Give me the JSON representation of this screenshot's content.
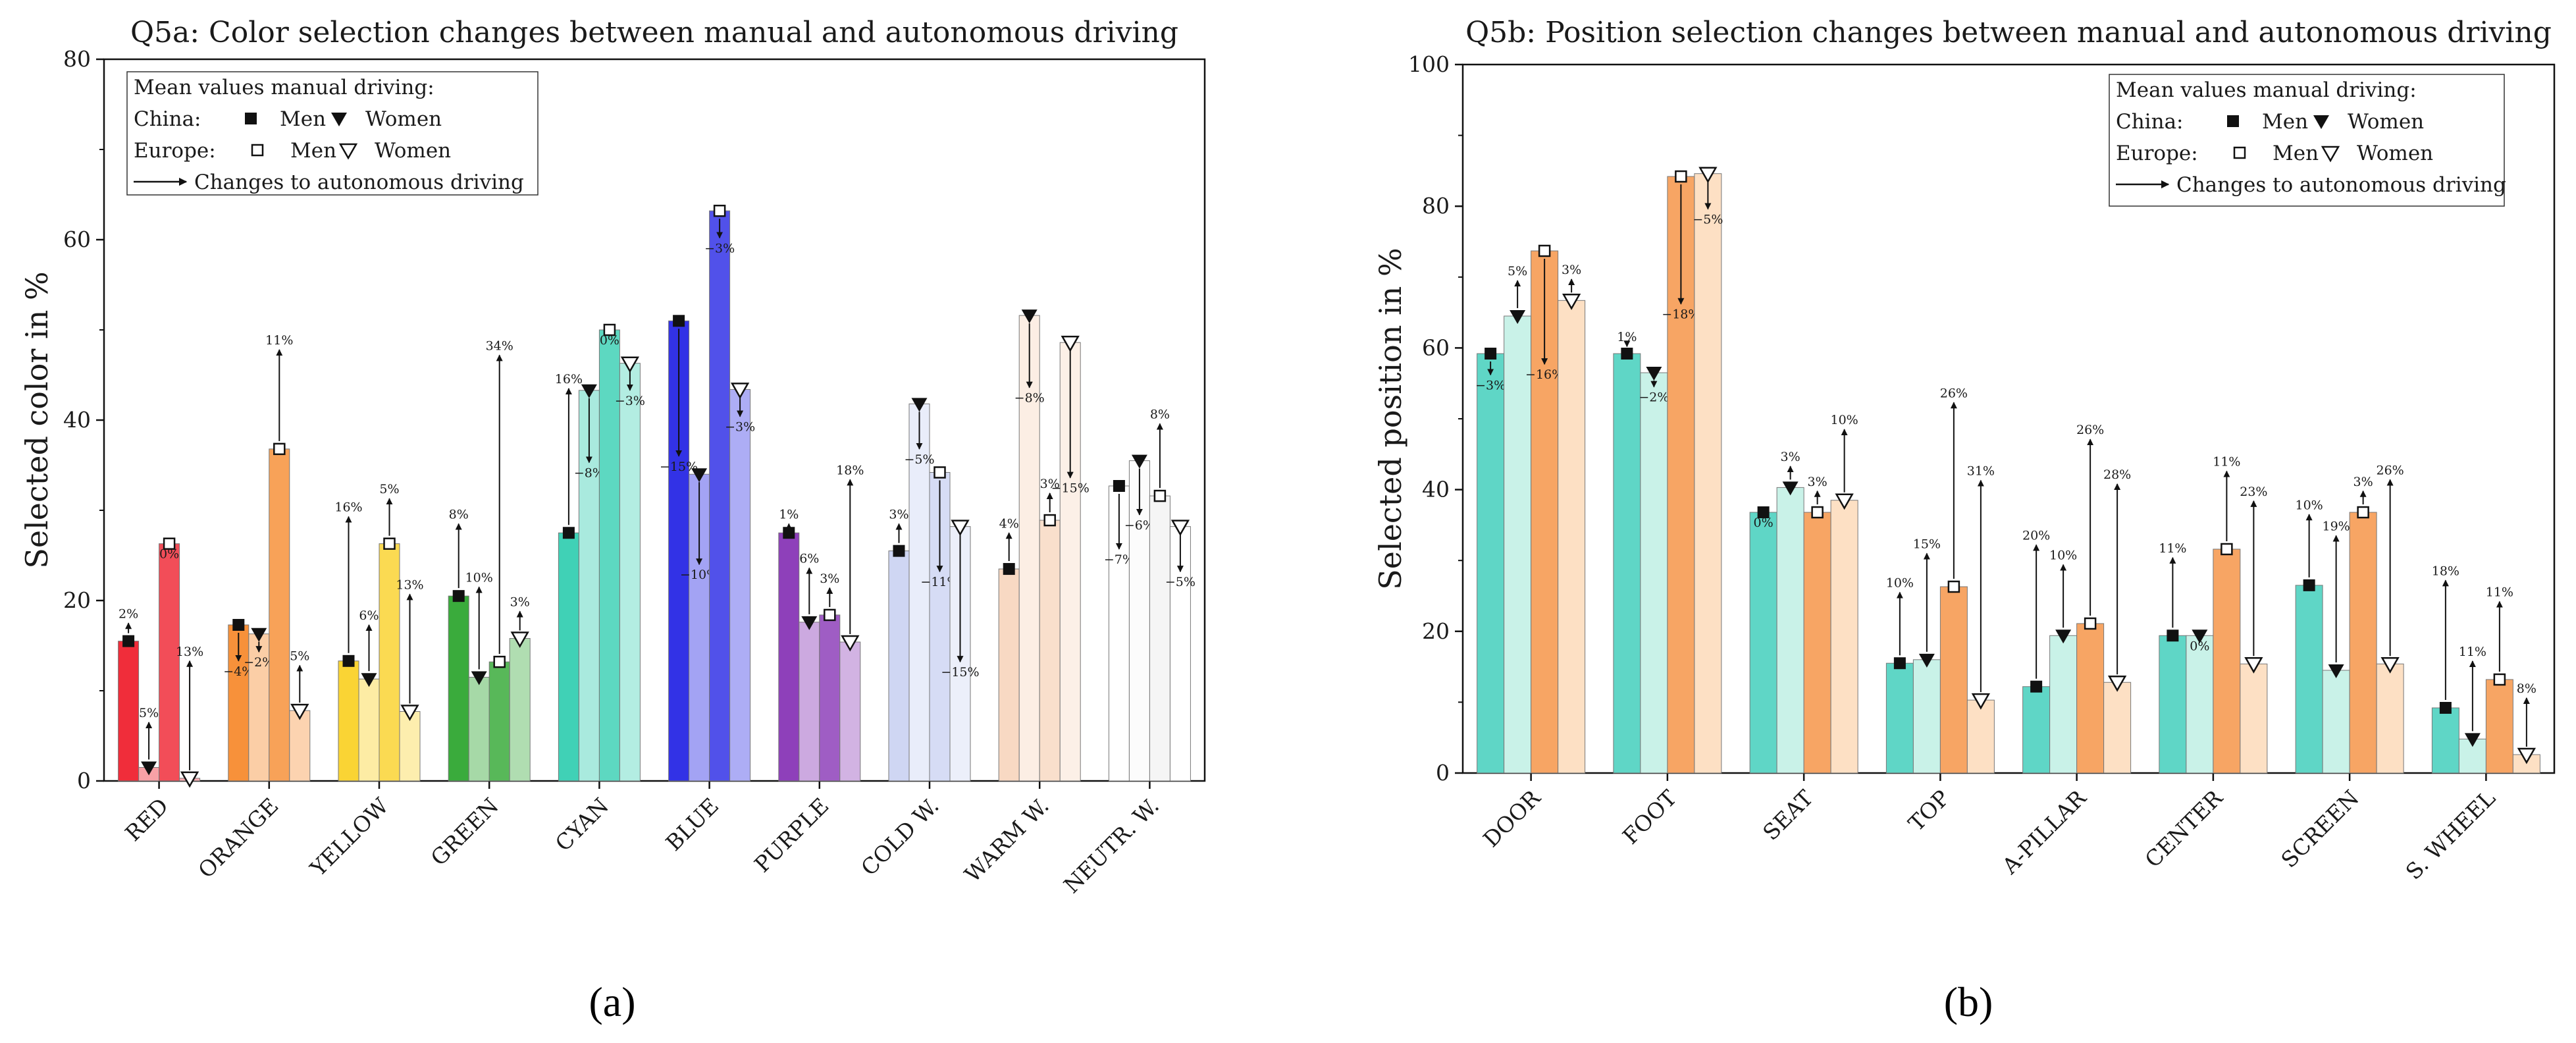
{
  "legend": {
    "title": "Mean values manual driving:",
    "row_china": "China:",
    "row_europe": "Europe:",
    "men": "Men",
    "women": "Women",
    "arrow": "Changes to autonomous driving"
  },
  "subfig_labels": [
    "(a)",
    "(b)"
  ],
  "chart_data": [
    {
      "type": "bar",
      "title": "Q5a: Color selection changes between manual and autonomous driving",
      "xlabel": "",
      "ylabel": "Selected color in %",
      "ylim": [
        0,
        80
      ],
      "yticks": [
        0,
        20,
        40,
        60,
        80
      ],
      "grid": false,
      "legend_position": "top-left",
      "categories": [
        "RED",
        "ORANGE",
        "YELLOW",
        "GREEN",
        "CYAN",
        "BLUE",
        "PURPLE",
        "COLD W.",
        "WARM W.",
        "NEUTR. W."
      ],
      "category_colors": [
        "#f02d3a",
        "#f7913a",
        "#fad434",
        "#3aab3c",
        "#40d1b6",
        "#3232e6",
        "#8e40ba",
        "#cfd6f3",
        "#f8d9c3",
        "#f2f2f2"
      ],
      "series_order": [
        "China men",
        "China women",
        "Europe men",
        "Europe women"
      ],
      "manual": [
        [
          15.5,
          1.5,
          26.3,
          0.3
        ],
        [
          17.3,
          16.3,
          36.8,
          7.8
        ],
        [
          13.3,
          11.3,
          26.3,
          7.7
        ],
        [
          20.5,
          11.5,
          13.2,
          15.8
        ],
        [
          27.5,
          43.3,
          50.0,
          46.3
        ],
        [
          51.0,
          34.0,
          63.2,
          43.4
        ],
        [
          27.5,
          17.6,
          18.4,
          15.4
        ],
        [
          25.5,
          41.8,
          34.2,
          28.2
        ],
        [
          23.5,
          51.6,
          28.9,
          48.6
        ],
        [
          32.7,
          35.5,
          31.6,
          28.2
        ]
      ],
      "autonomous": [
        [
          17.5,
          6.5,
          26.3,
          13.3
        ],
        [
          13.3,
          14.3,
          47.8,
          12.8
        ],
        [
          29.3,
          17.3,
          31.3,
          20.7
        ],
        [
          28.5,
          21.5,
          47.2,
          18.8
        ],
        [
          43.5,
          35.3,
          50.0,
          43.3
        ],
        [
          36.0,
          24.0,
          60.2,
          40.4
        ],
        [
          28.5,
          23.6,
          21.4,
          33.4
        ],
        [
          28.5,
          36.8,
          23.2,
          13.2
        ],
        [
          27.5,
          43.6,
          31.9,
          33.6
        ],
        [
          25.7,
          29.5,
          39.6,
          23.2
        ]
      ],
      "change_labels": [
        [
          "2%",
          "5%",
          "0%",
          "13%"
        ],
        [
          "−4%",
          "−2%",
          "11%",
          "5%"
        ],
        [
          "16%",
          "6%",
          "5%",
          "13%"
        ],
        [
          "8%",
          "10%",
          "34%",
          "3%"
        ],
        [
          "16%",
          "−8%",
          "0%",
          "−3%"
        ],
        [
          "−15%",
          "−10%",
          "−3%",
          "−3%"
        ],
        [
          "1%",
          "6%",
          "3%",
          "18%"
        ],
        [
          "3%",
          "−5%",
          "−11%",
          "−15%"
        ],
        [
          "4%",
          "−8%",
          "3%",
          "−15%"
        ],
        [
          "−7%",
          "−6%",
          "8%",
          "−5%"
        ]
      ]
    },
    {
      "type": "bar",
      "title": "Q5b: Position selection changes between manual and autonomous driving",
      "xlabel": "",
      "ylabel": "Selected position in %",
      "ylim": [
        0,
        100
      ],
      "yticks": [
        0,
        20,
        40,
        60,
        80,
        100
      ],
      "grid": false,
      "legend_position": "top-right",
      "categories": [
        "DOOR",
        "FOOT",
        "SEAT",
        "TOP",
        "A-PILLAR",
        "CENTER",
        "SCREEN",
        "S. WHEEL"
      ],
      "series_colors": [
        "#5fd6c6",
        "#c9f2e8",
        "#f7a564",
        "#fde0c4"
      ],
      "series_order": [
        "China men",
        "China women",
        "Europe men",
        "Europe women"
      ],
      "manual": [
        [
          59.2,
          64.5,
          73.7,
          66.7
        ],
        [
          59.2,
          56.5,
          84.2,
          84.6
        ],
        [
          36.8,
          40.3,
          36.8,
          38.5
        ],
        [
          15.5,
          16.0,
          26.3,
          10.3
        ],
        [
          12.2,
          19.4,
          21.1,
          12.8
        ],
        [
          19.4,
          19.4,
          31.6,
          15.4
        ],
        [
          26.5,
          14.5,
          36.8,
          15.4
        ],
        [
          9.2,
          4.8,
          13.2,
          2.6
        ]
      ],
      "autonomous": [
        [
          56.2,
          69.5,
          57.7,
          69.7
        ],
        [
          60.2,
          54.5,
          66.2,
          79.6
        ],
        [
          36.8,
          43.3,
          39.8,
          48.5
        ],
        [
          25.5,
          31.0,
          52.3,
          41.3
        ],
        [
          32.2,
          29.4,
          47.1,
          40.8
        ],
        [
          30.4,
          19.4,
          42.6,
          38.4
        ],
        [
          36.5,
          33.5,
          39.8,
          41.4
        ],
        [
          27.2,
          15.8,
          24.2,
          10.6
        ]
      ],
      "change_labels": [
        [
          "−3%",
          "5%",
          "−16%",
          "3%"
        ],
        [
          "1%",
          "−2%",
          "−18%",
          "−5%"
        ],
        [
          "0%",
          "3%",
          "3%",
          "10%"
        ],
        [
          "10%",
          "15%",
          "26%",
          "31%"
        ],
        [
          "20%",
          "10%",
          "26%",
          "28%"
        ],
        [
          "11%",
          "0%",
          "11%",
          "23%"
        ],
        [
          "10%",
          "19%",
          "3%",
          "26%"
        ],
        [
          "18%",
          "11%",
          "11%",
          "8%"
        ]
      ]
    }
  ]
}
